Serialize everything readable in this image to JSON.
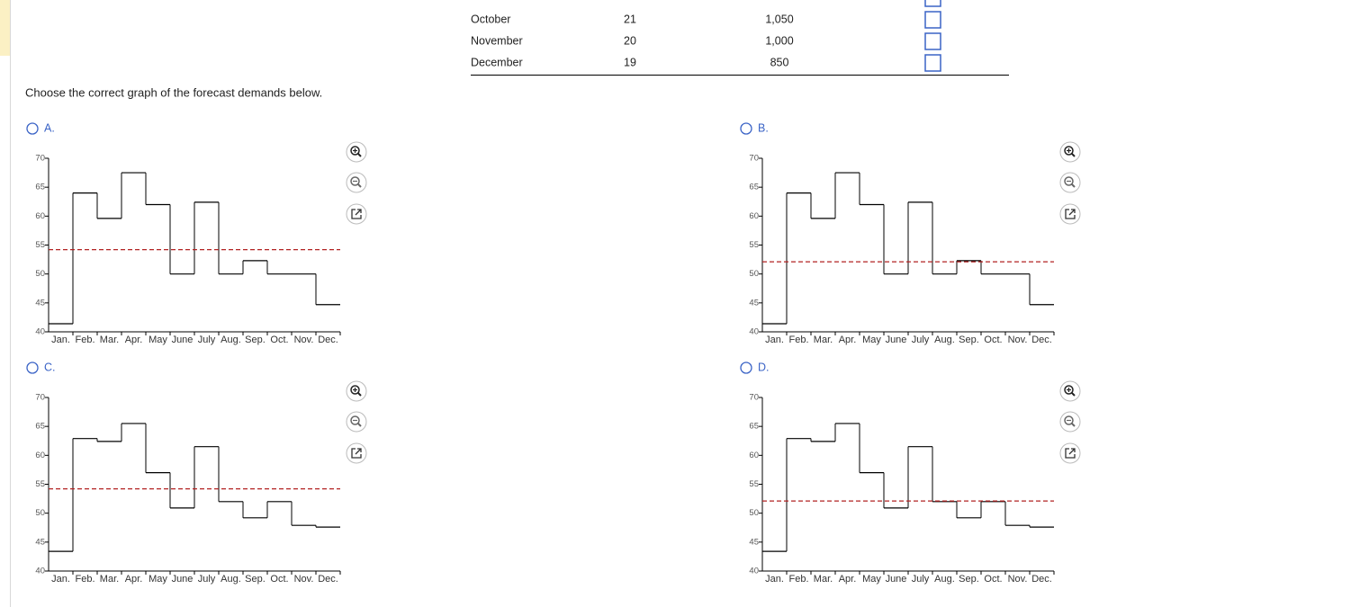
{
  "table": {
    "rows": [
      [
        "October",
        21,
        "1,050"
      ],
      [
        "November",
        20,
        "1,000"
      ],
      [
        "December",
        19,
        850
      ]
    ]
  },
  "question": "Choose the correct graph of the forecast demands below.",
  "options": [
    {
      "label": "A.",
      "chart": {
        "type": "step",
        "categories": [
          "Jan.",
          "Feb.",
          "Mar.",
          "Apr.",
          "May",
          "June",
          "July",
          "Aug.",
          "Sep.",
          "Oct.",
          "Nov.",
          "Dec."
        ],
        "values": [
          41.4,
          64,
          59.6,
          67.5,
          62,
          50,
          62.4,
          50,
          52.3,
          50,
          50,
          44.7
        ],
        "average": 54.2,
        "color": "#000000",
        "average_color": "#b22222",
        "ylim": [
          40,
          70
        ],
        "yticks": [
          40,
          45,
          50,
          55,
          60,
          65,
          70
        ]
      }
    },
    {
      "label": "B.",
      "chart": {
        "type": "step",
        "categories": [
          "Jan.",
          "Feb.",
          "Mar.",
          "Apr.",
          "May",
          "June",
          "July",
          "Aug.",
          "Sep.",
          "Oct.",
          "Nov.",
          "Dec."
        ],
        "values": [
          41.4,
          64,
          59.6,
          67.5,
          62,
          50,
          62.4,
          50,
          52.3,
          50,
          50,
          44.7
        ],
        "average": 52.1,
        "color": "#000000",
        "average_color": "#b22222",
        "ylim": [
          40,
          70
        ],
        "yticks": [
          40,
          45,
          50,
          55,
          60,
          65,
          70
        ]
      }
    },
    {
      "label": "C.",
      "chart": {
        "type": "step",
        "categories": [
          "Jan.",
          "Feb.",
          "Mar.",
          "Apr.",
          "May",
          "June",
          "July",
          "Aug.",
          "Sep.",
          "Oct.",
          "Nov.",
          "Dec."
        ],
        "values": [
          43.4,
          62.9,
          62.4,
          65.5,
          57,
          50.9,
          61.5,
          52,
          49.2,
          52,
          47.9,
          47.6
        ],
        "average": 54.2,
        "color": "#000000",
        "average_color": "#b22222",
        "ylim": [
          40,
          70
        ],
        "yticks": [
          40,
          45,
          50,
          55,
          60,
          65,
          70
        ]
      }
    },
    {
      "label": "D.",
      "chart": {
        "type": "step",
        "categories": [
          "Jan.",
          "Feb.",
          "Mar.",
          "Apr.",
          "May",
          "June",
          "July",
          "Aug.",
          "Sep.",
          "Oct.",
          "Nov.",
          "Dec."
        ],
        "values": [
          43.4,
          62.9,
          62.4,
          65.5,
          57,
          50.9,
          61.5,
          52,
          49.2,
          52,
          47.9,
          47.6
        ],
        "average": 52.1,
        "color": "#000000",
        "average_color": "#b22222",
        "ylim": [
          40,
          70
        ],
        "yticks": [
          40,
          45,
          50,
          55,
          60,
          65,
          70
        ]
      }
    }
  ]
}
